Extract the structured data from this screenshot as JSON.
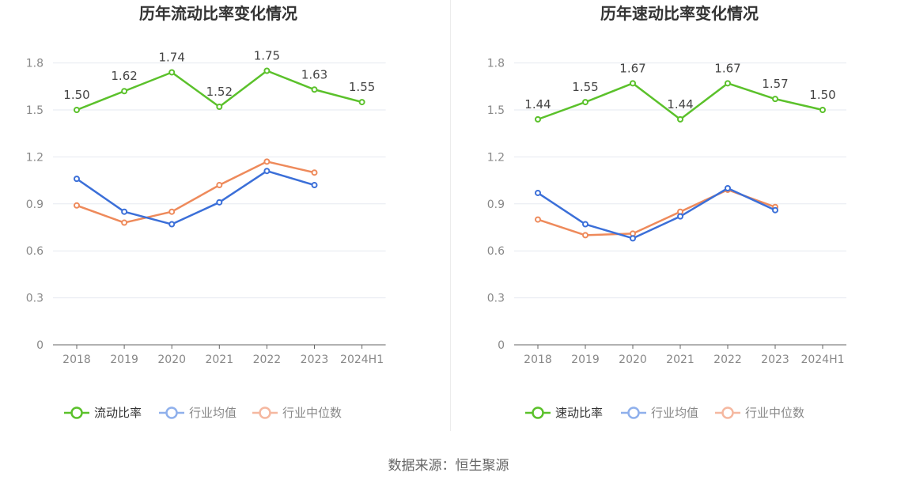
{
  "chart_data": [
    {
      "type": "line",
      "title": "历年流动比率变化情况",
      "categories": [
        "2018",
        "2019",
        "2020",
        "2021",
        "2022",
        "2023",
        "2024H1"
      ],
      "ylim": [
        0,
        1.8
      ],
      "yticks": [
        "0",
        "0.3",
        "0.6",
        "0.9",
        "1.2",
        "1.5",
        "1.8"
      ],
      "series": [
        {
          "name": "流动比率",
          "color": "#5bc12b",
          "labeled": true,
          "values": [
            1.5,
            1.62,
            1.74,
            1.52,
            1.75,
            1.63,
            1.55
          ],
          "labels": [
            "1.50",
            "1.62",
            "1.74",
            "1.52",
            "1.75",
            "1.63",
            "1.55"
          ]
        },
        {
          "name": "行业均值",
          "color": "#3b6fd8",
          "legend_color": "#8fb0ec",
          "labeled": false,
          "values": [
            1.06,
            0.85,
            0.77,
            0.91,
            1.11,
            1.02,
            null
          ]
        },
        {
          "name": "行业中位数",
          "color": "#ee8a5b",
          "legend_color": "#f5b8a0",
          "labeled": false,
          "values": [
            0.89,
            0.78,
            0.85,
            1.02,
            1.17,
            1.1,
            null
          ]
        }
      ]
    },
    {
      "type": "line",
      "title": "历年速动比率变化情况",
      "categories": [
        "2018",
        "2019",
        "2020",
        "2021",
        "2022",
        "2023",
        "2024H1"
      ],
      "ylim": [
        0,
        1.8
      ],
      "yticks": [
        "0",
        "0.3",
        "0.6",
        "0.9",
        "1.2",
        "1.5",
        "1.8"
      ],
      "series": [
        {
          "name": "速动比率",
          "color": "#5bc12b",
          "labeled": true,
          "values": [
            1.44,
            1.55,
            1.67,
            1.44,
            1.67,
            1.57,
            1.5
          ],
          "labels": [
            "1.44",
            "1.55",
            "1.67",
            "1.44",
            "1.67",
            "1.57",
            "1.50"
          ]
        },
        {
          "name": "行业均值",
          "color": "#3b6fd8",
          "legend_color": "#8fb0ec",
          "labeled": false,
          "values": [
            0.97,
            0.77,
            0.68,
            0.82,
            1.0,
            0.86,
            null
          ]
        },
        {
          "name": "行业中位数",
          "color": "#ee8a5b",
          "legend_color": "#f5b8a0",
          "labeled": false,
          "values": [
            0.8,
            0.7,
            0.71,
            0.85,
            0.99,
            0.88,
            null
          ]
        }
      ]
    }
  ],
  "source_text": "数据来源：恒生聚源"
}
